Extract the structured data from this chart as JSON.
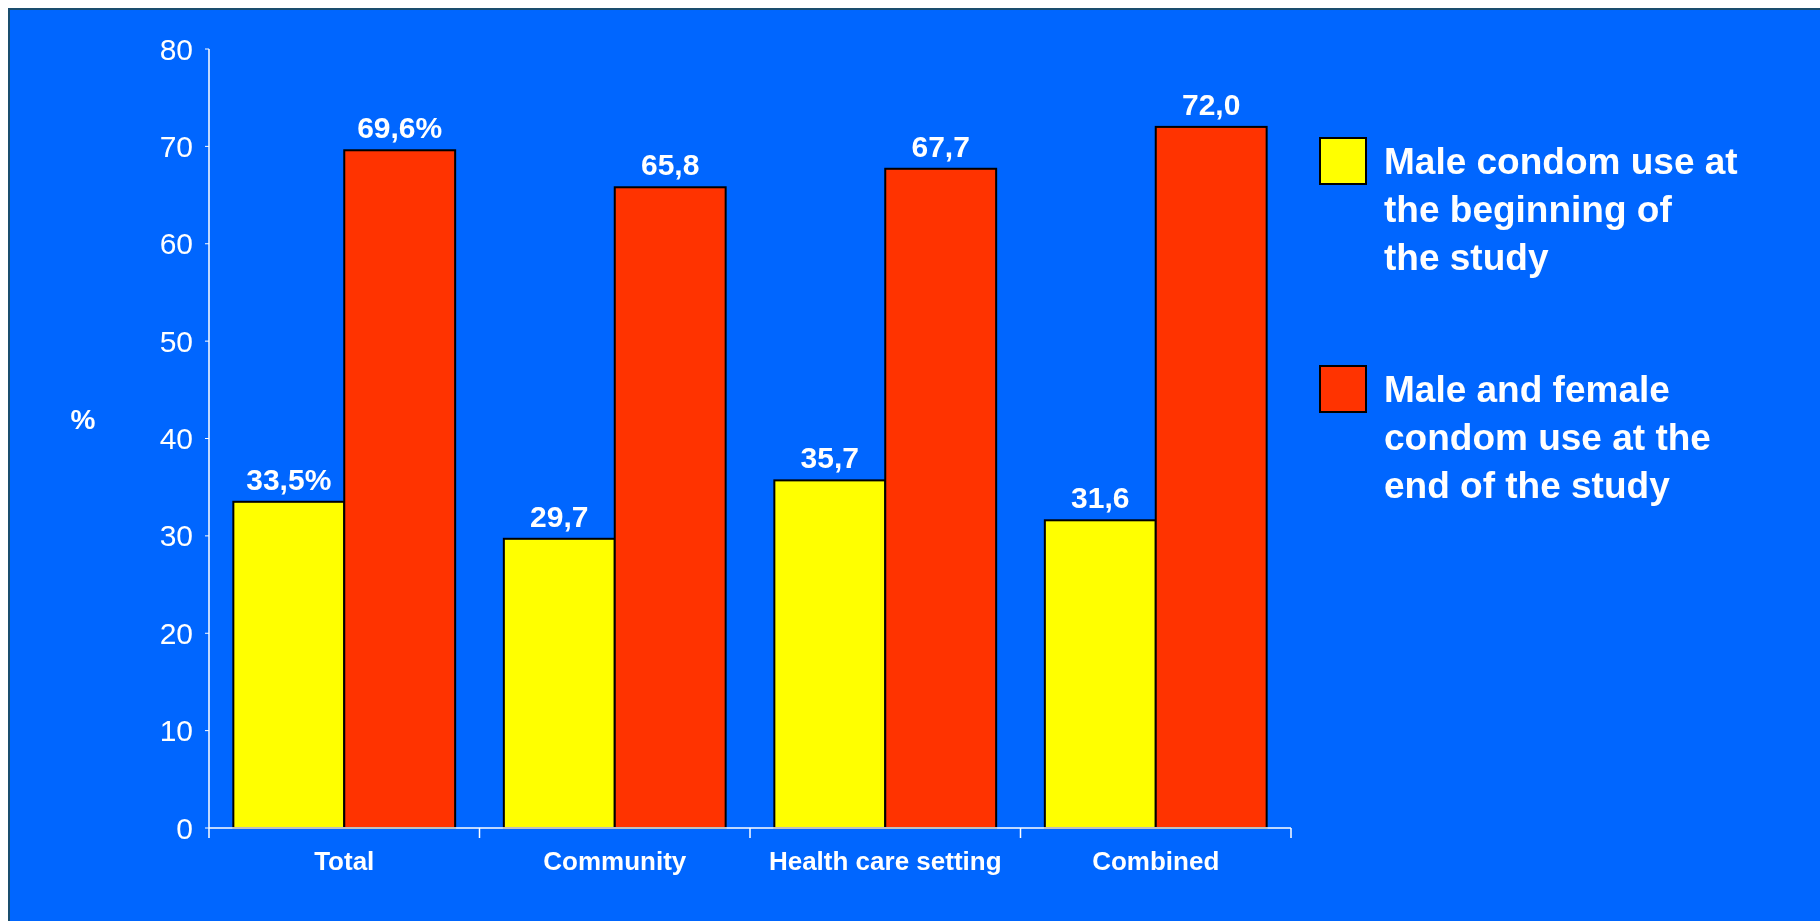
{
  "chart_data": {
    "type": "bar",
    "ylabel": "%",
    "categories": [
      "Total",
      "Community",
      "Health care setting",
      "Combined"
    ],
    "series": [
      {
        "name": "Male condom use at the beginning of the study",
        "color": "#ffff00",
        "values": [
          33.5,
          29.7,
          35.7,
          31.6
        ],
        "value_labels": [
          "33,5%",
          "29,7",
          "35,7",
          "31,6"
        ]
      },
      {
        "name": "Male and female condom use at the end of the study",
        "color": "#ff3300",
        "values": [
          69.6,
          65.8,
          67.7,
          72.0
        ],
        "value_labels": [
          "69,6%",
          "65,8",
          "67,7",
          "72,0"
        ]
      }
    ],
    "ylim": [
      0,
      80
    ],
    "yticks": [
      0,
      10,
      20,
      30,
      40,
      50,
      60,
      70,
      80
    ],
    "grid": false,
    "legend": "right"
  }
}
